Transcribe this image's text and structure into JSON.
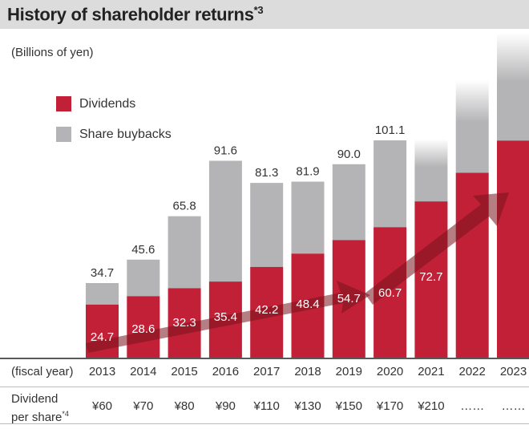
{
  "header": {
    "title": "History of shareholder returns",
    "title_sup": "*3"
  },
  "chart_data": {
    "type": "bar",
    "stacked": true,
    "title": "History of shareholder returns*3",
    "unit_label": "(Billions of yen)",
    "xlabel": "(fiscal year)",
    "categories": [
      "2013",
      "2014",
      "2015",
      "2016",
      "2017",
      "2018",
      "2019",
      "2020",
      "2021",
      "2022",
      "2023"
    ],
    "series": [
      {
        "name": "Dividends",
        "color": "#c22037",
        "values": [
          24.7,
          28.6,
          32.3,
          35.4,
          42.2,
          48.4,
          54.7,
          60.7,
          72.7,
          86,
          101
        ],
        "labels": [
          "24.7",
          "28.6",
          "32.3",
          "35.4",
          "42.2",
          "48.4",
          "54.7",
          "60.7",
          "72.7",
          "",
          ""
        ]
      },
      {
        "name": "Share buybacks",
        "color": "#b4b4b6",
        "values": [
          10.0,
          17.0,
          33.5,
          56.2,
          39.1,
          33.5,
          35.3,
          40.4,
          29,
          43,
          50
        ],
        "faded_top": [
          false,
          false,
          false,
          false,
          false,
          false,
          false,
          false,
          true,
          true,
          true
        ]
      }
    ],
    "totals": [
      34.7,
      45.6,
      65.8,
      91.6,
      81.3,
      81.9,
      90.0,
      101.1,
      null,
      null,
      null
    ],
    "total_labels": [
      "34.7",
      "45.6",
      "65.8",
      "91.6",
      "81.3",
      "81.9",
      "90.0",
      "101.1",
      "",
      "",
      ""
    ],
    "ylim": [
      0,
      160
    ],
    "grid": false,
    "legend": "top-left",
    "annotations": [
      "Upward trend arrow across dividend values"
    ]
  },
  "legend": {
    "dividends": "Dividends",
    "buybacks": "Share buybacks"
  },
  "table": {
    "year_row_label": "(fiscal year)",
    "dps_label_line1": "Dividend",
    "dps_label_line2": "per share",
    "dps_label_sup": "*4",
    "dps_values": [
      "¥60",
      "¥70",
      "¥80",
      "¥90",
      "¥110",
      "¥130",
      "¥150",
      "¥170",
      "¥210",
      "……",
      "……"
    ]
  }
}
